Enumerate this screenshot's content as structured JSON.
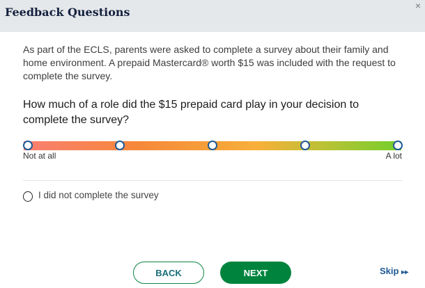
{
  "header": {
    "title": "Feedback Questions",
    "close_icon": "×"
  },
  "intro": "As part of the ECLS, parents were asked to complete a survey about their family and home environment. A prepaid Mastercard® worth $15 was included with the request to complete the survey.",
  "question": "How much of a role did the $15 prepaid card play in your decision to complete the survey?",
  "scale": {
    "min_label": "Not at all",
    "max_label": "A lot",
    "points": 5,
    "selected": null,
    "colors": [
      "#f97f72",
      "#f7883a",
      "#f8b03a",
      "#74cf2b"
    ]
  },
  "option": {
    "label": "I did not complete the survey",
    "checked": false
  },
  "footer": {
    "back": "BACK",
    "next": "NEXT",
    "skip": "Skip",
    "skip_icon": "▸▸"
  },
  "colors": {
    "primary": "#00843d",
    "link": "#1d5a96",
    "header_bg": "#e5e8eb"
  }
}
